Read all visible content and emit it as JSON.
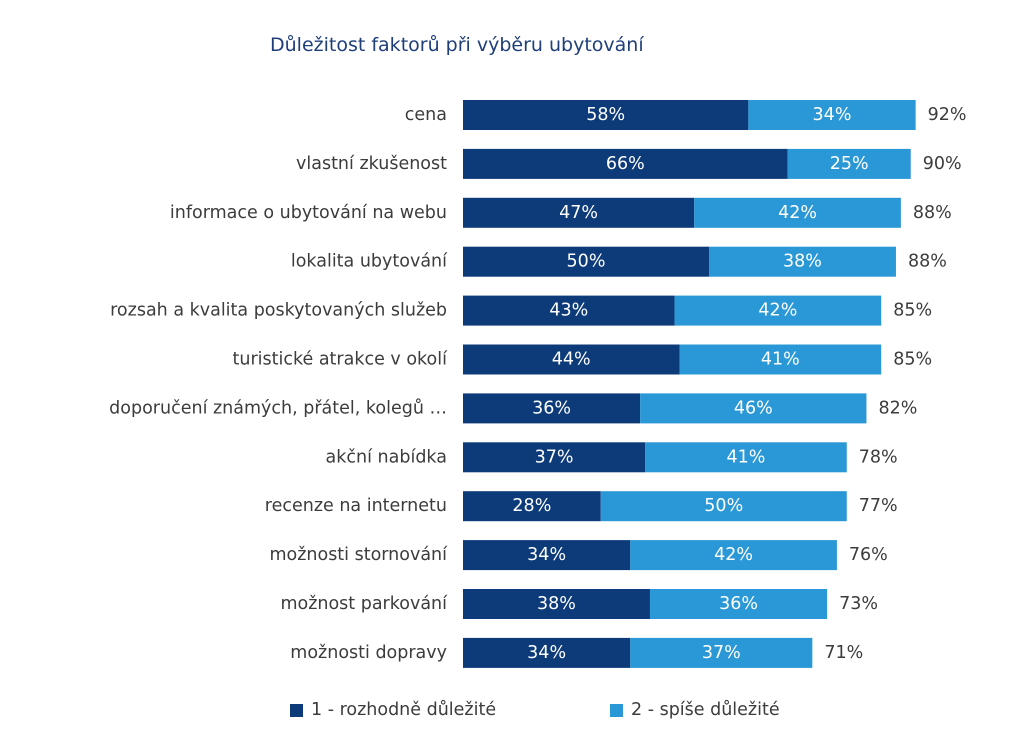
{
  "chart_data": {
    "type": "bar",
    "orientation": "horizontal",
    "stacked": true,
    "title": "Důležitost faktorů při výběru ubytování",
    "categories": [
      "cena",
      "vlastní zkušenost",
      "informace o ubytování na webu",
      "lokalita ubytování",
      "rozsah a kvalita poskytovaných služeb",
      "turistické atrakce v okolí",
      "doporučení známých, přátel, kolegů …",
      "akční nabídka",
      "recenze na internetu",
      "možnosti stornování",
      "možnost parkování",
      "možnosti dopravy"
    ],
    "series": [
      {
        "name": "1 - rozhodně důležité",
        "color": "#0d3b7a",
        "values": [
          58,
          66,
          47,
          50,
          43,
          44,
          36,
          37,
          28,
          34,
          38,
          34
        ],
        "labels": [
          "58%",
          "66%",
          "47%",
          "50%",
          "43%",
          "44%",
          "36%",
          "37%",
          "28%",
          "34%",
          "38%",
          "34%"
        ]
      },
      {
        "name": "2 - spíše důležité",
        "color": "#2a98d6",
        "values": [
          34,
          25,
          42,
          38,
          42,
          41,
          46,
          41,
          50,
          42,
          36,
          37
        ],
        "labels": [
          "34%",
          "25%",
          "42%",
          "38%",
          "42%",
          "41%",
          "46%",
          "41%",
          "50%",
          "42%",
          "36%",
          "37%"
        ]
      }
    ],
    "totals": [
      "92%",
      "90%",
      "88%",
      "88%",
      "85%",
      "85%",
      "82%",
      "78%",
      "77%",
      "76%",
      "73%",
      "71%"
    ],
    "total_values": [
      92,
      90,
      88,
      88,
      85,
      85,
      82,
      78,
      77,
      76,
      73,
      71
    ],
    "unit": "%",
    "grid": false,
    "legend_position": "bottom"
  }
}
